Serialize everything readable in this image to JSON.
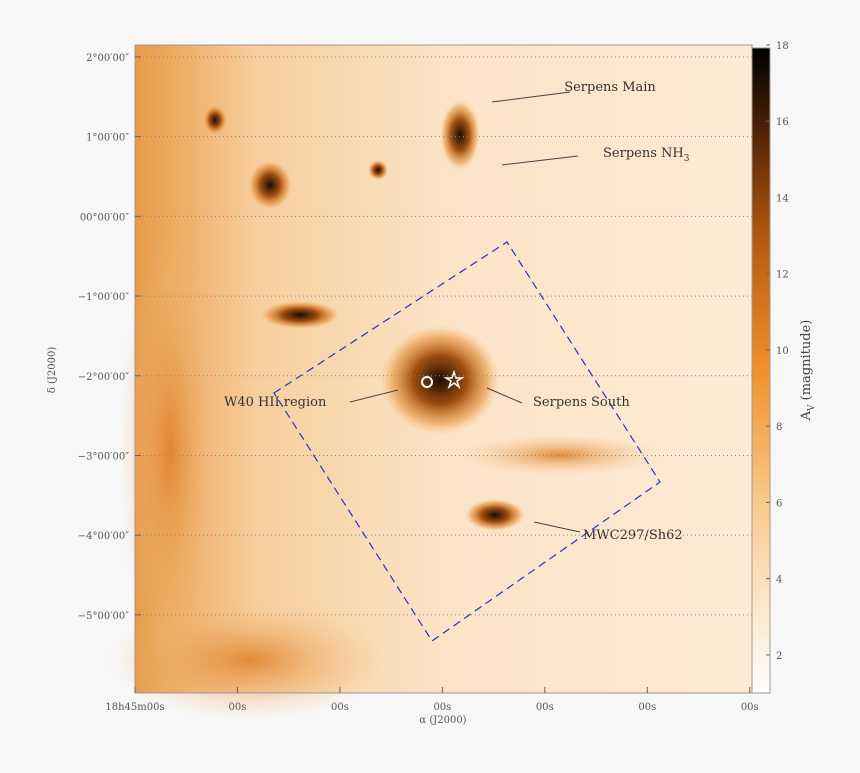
{
  "chart_data": {
    "type": "image",
    "xlabel": "α (J2000)",
    "ylabel": "δ (J2000)",
    "xlim": [
      45,
      38.9
    ],
    "xticks": [
      {
        "value": 45,
        "label": "18h45m00s"
      },
      {
        "value": 44,
        "label": "00s"
      },
      {
        "value": 43,
        "label": "00s"
      },
      {
        "value": 42,
        "label": "00s"
      },
      {
        "value": 41,
        "label": "00s"
      },
      {
        "value": 40,
        "label": "00s"
      },
      {
        "value": 39,
        "label": "00s"
      }
    ],
    "ylim": [
      -5.98,
      2.15
    ],
    "yticks": [
      {
        "value": 2,
        "label": "2°00′00″"
      },
      {
        "value": 1,
        "label": "1°00′00″"
      },
      {
        "value": 0,
        "label": "00°00′00″"
      },
      {
        "value": -1,
        "label": "−1°00′00″"
      },
      {
        "value": -2,
        "label": "−2°00′00″"
      },
      {
        "value": -3,
        "label": "−3°00′00″"
      },
      {
        "value": -4,
        "label": "−4°00′00″"
      },
      {
        "value": -5,
        "label": "−5°00′00″"
      }
    ],
    "colorbar": {
      "label": {
        "main": "A",
        "sub": "V",
        "rest": " (magnitude)"
      },
      "lim": [
        1,
        18
      ],
      "ticks": [
        2,
        4,
        6,
        8,
        10,
        12,
        14,
        16,
        18
      ]
    },
    "annotations": [
      {
        "text": "Serpens Main"
      },
      {
        "text": "Serpens NH",
        "sub": "3"
      },
      {
        "text": "W40 HII region"
      },
      {
        "text": "Serpens South"
      },
      {
        "text": "MWC297/Sh62"
      }
    ]
  }
}
